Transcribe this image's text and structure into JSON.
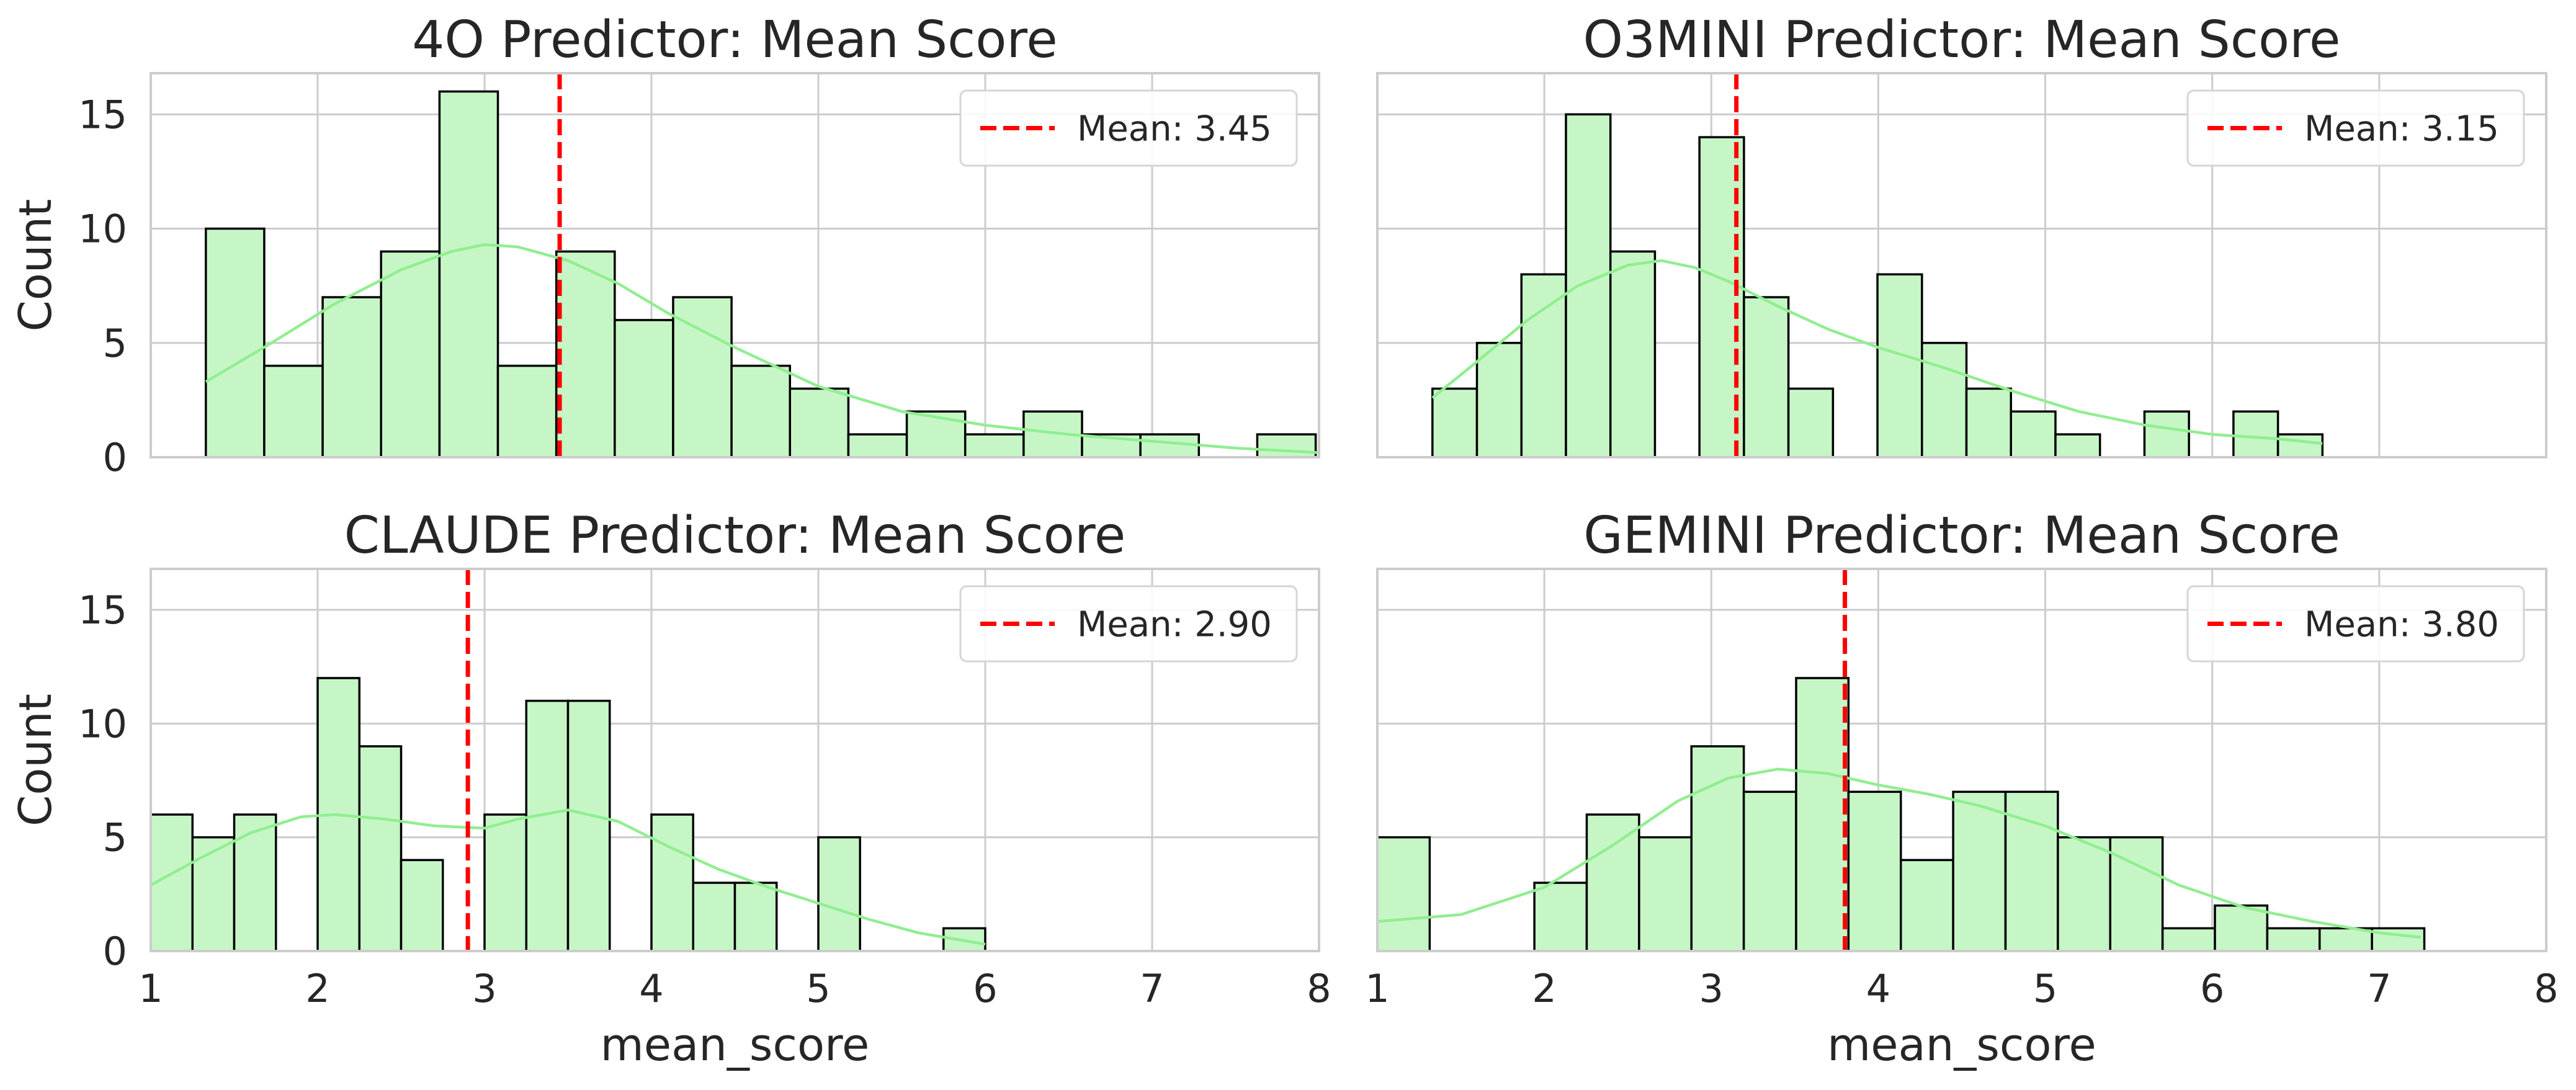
{
  "colors": {
    "bar_fill": "#c6f6c6",
    "bar_edge": "#000000",
    "kde_line": "#90ee90",
    "mean_line": "#ff0000",
    "grid": "#cccccc",
    "spine": "#cccccc"
  },
  "chart_data": [
    {
      "type": "bar",
      "title": "4O Predictor: Mean Score",
      "xlabel": "",
      "ylabel": "Count",
      "xlim": [
        1,
        8
      ],
      "ylim": [
        0,
        16.8
      ],
      "xticks": [
        "1",
        "2",
        "3",
        "4",
        "5",
        "6",
        "7",
        "8"
      ],
      "yticks": [
        "0",
        "5",
        "10",
        "15"
      ],
      "show_xticklabels": false,
      "show_yticklabels": true,
      "grid": true,
      "legend": {
        "position": "upper-right",
        "label": "Mean: 3.45"
      },
      "mean": 3.45,
      "bins": {
        "start": 1.33,
        "width": 0.35
      },
      "values": [
        10,
        4,
        7,
        9,
        16,
        4,
        9,
        6,
        7,
        4,
        3,
        1,
        2,
        1,
        2,
        1,
        1,
        0,
        1
      ],
      "kde": {
        "x": [
          1.33,
          1.7,
          2.1,
          2.5,
          2.8,
          3.0,
          3.2,
          3.5,
          3.8,
          4.1,
          4.5,
          5.0,
          5.5,
          6.0,
          6.5,
          7.0,
          7.5,
          8.0
        ],
        "y": [
          3.3,
          4.9,
          6.7,
          8.2,
          9.0,
          9.3,
          9.2,
          8.6,
          7.6,
          6.3,
          4.8,
          3.1,
          2.0,
          1.4,
          1.0,
          0.7,
          0.4,
          0.2
        ]
      }
    },
    {
      "type": "bar",
      "title": "O3MINI Predictor: Mean Score",
      "xlabel": "",
      "ylabel": "",
      "xlim": [
        1,
        8
      ],
      "ylim": [
        0,
        16.8
      ],
      "xticks": [
        "1",
        "2",
        "3",
        "4",
        "5",
        "6",
        "7",
        "8"
      ],
      "yticks": [
        "0",
        "5",
        "10",
        "15"
      ],
      "show_xticklabels": false,
      "show_yticklabels": false,
      "grid": true,
      "legend": {
        "position": "upper-right",
        "label": "Mean: 3.15"
      },
      "mean": 3.15,
      "bins": {
        "start": 1.33,
        "width": 0.2665
      },
      "values": [
        3,
        5,
        8,
        15,
        9,
        0,
        14,
        7,
        3,
        0,
        8,
        5,
        3,
        2,
        1,
        0,
        2,
        0,
        2,
        1
      ],
      "kde": {
        "x": [
          1.33,
          1.6,
          1.9,
          2.2,
          2.5,
          2.7,
          2.9,
          3.1,
          3.4,
          3.7,
          4.0,
          4.4,
          4.8,
          5.2,
          5.6,
          6.0,
          6.4,
          6.66
        ],
        "y": [
          2.6,
          4.2,
          6.0,
          7.5,
          8.4,
          8.6,
          8.3,
          7.7,
          6.6,
          5.6,
          4.8,
          3.9,
          2.9,
          2.0,
          1.4,
          1.0,
          0.8,
          0.6
        ]
      }
    },
    {
      "type": "bar",
      "title": "CLAUDE Predictor: Mean Score",
      "xlabel": "mean_score",
      "ylabel": "Count",
      "xlim": [
        1,
        8
      ],
      "ylim": [
        0,
        16.8
      ],
      "xticks": [
        "1",
        "2",
        "3",
        "4",
        "5",
        "6",
        "7",
        "8"
      ],
      "yticks": [
        "0",
        "5",
        "10",
        "15"
      ],
      "show_xticklabels": true,
      "show_yticklabels": true,
      "grid": true,
      "legend": {
        "position": "upper-right",
        "label": "Mean: 2.90"
      },
      "mean": 2.9,
      "bins": {
        "start": 1.0,
        "width": 0.25
      },
      "values": [
        6,
        5,
        6,
        0,
        12,
        9,
        4,
        0,
        6,
        11,
        11,
        0,
        6,
        3,
        3,
        0,
        5,
        0,
        0,
        1
      ],
      "kde": {
        "x": [
          1.0,
          1.3,
          1.6,
          1.9,
          2.1,
          2.4,
          2.7,
          3.0,
          3.2,
          3.5,
          3.8,
          4.1,
          4.4,
          4.7,
          5.0,
          5.3,
          5.6,
          6.0
        ],
        "y": [
          2.9,
          4.1,
          5.2,
          5.9,
          6.0,
          5.8,
          5.5,
          5.4,
          5.8,
          6.2,
          5.7,
          4.6,
          3.6,
          2.8,
          2.1,
          1.4,
          0.8,
          0.3
        ]
      }
    },
    {
      "type": "bar",
      "title": "GEMINI Predictor: Mean Score",
      "xlabel": "mean_score",
      "ylabel": "",
      "xlim": [
        1,
        8
      ],
      "ylim": [
        0,
        16.8
      ],
      "xticks": [
        "1",
        "2",
        "3",
        "4",
        "5",
        "6",
        "7",
        "8"
      ],
      "yticks": [
        "0",
        "5",
        "10",
        "15"
      ],
      "show_xticklabels": true,
      "show_yticklabels": false,
      "grid": true,
      "legend": {
        "position": "upper-right",
        "label": "Mean: 3.80"
      },
      "mean": 3.8,
      "bins": {
        "start": 1.0,
        "width": 0.3135
      },
      "values": [
        5,
        0,
        0,
        3,
        6,
        5,
        9,
        7,
        12,
        7,
        4,
        7,
        7,
        5,
        5,
        1,
        2,
        1,
        1,
        1
      ],
      "kde": {
        "x": [
          1.0,
          1.5,
          2.0,
          2.4,
          2.8,
          3.1,
          3.4,
          3.7,
          4.0,
          4.3,
          4.6,
          5.0,
          5.4,
          5.8,
          6.2,
          6.6,
          7.0,
          7.25
        ],
        "y": [
          1.3,
          1.6,
          2.8,
          4.6,
          6.6,
          7.6,
          8.0,
          7.8,
          7.3,
          6.9,
          6.4,
          5.5,
          4.3,
          2.9,
          1.9,
          1.3,
          0.8,
          0.6
        ]
      }
    }
  ]
}
